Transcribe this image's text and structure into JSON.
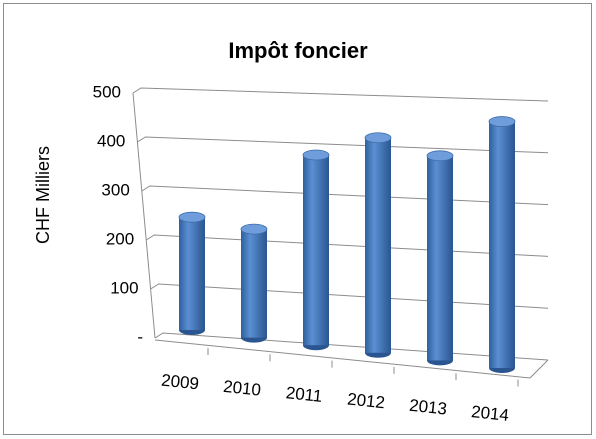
{
  "chart_data": {
    "type": "bar3d",
    "title": "Impôt foncier",
    "y_label": "CHF Milliers",
    "categories": [
      "2009",
      "2010",
      "2011",
      "2012",
      "2013",
      "2014"
    ],
    "values": [
      240,
      225,
      385,
      425,
      395,
      465
    ],
    "color": "#4a7ebb",
    "ylim": [
      0,
      500
    ],
    "yticks": [
      {
        "value": 0,
        "label": "-"
      },
      100,
      200,
      300,
      400,
      500
    ],
    "grid": true
  }
}
